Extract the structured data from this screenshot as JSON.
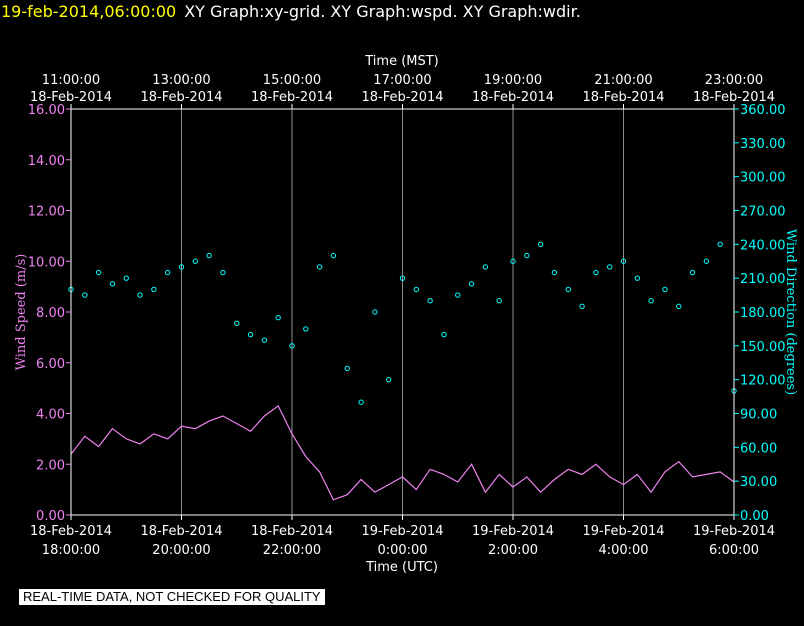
{
  "header": {
    "datetime": "19-feb-2014,06:00:00",
    "graphs": "XY Graph:xy-grid.  XY Graph:wspd.  XY Graph:wdir."
  },
  "disclaimer": "REAL-TIME DATA, NOT CHECKED FOR QUALITY",
  "colors": {
    "background": "#000000",
    "speed_series": "#ee82ee",
    "direction_series": "#00ffff",
    "axis_white": "#ffffff",
    "header_date": "#ffff00"
  },
  "chart_data": {
    "type": "line",
    "title": "",
    "top_axis": {
      "label": "Time (MST)",
      "ticks": [
        {
          "time": "11:00:00",
          "date": "18-Feb-2014"
        },
        {
          "time": "13:00:00",
          "date": "18-Feb-2014"
        },
        {
          "time": "15:00:00",
          "date": "18-Feb-2014"
        },
        {
          "time": "17:00:00",
          "date": "18-Feb-2014"
        },
        {
          "time": "19:00:00",
          "date": "18-Feb-2014"
        },
        {
          "time": "21:00:00",
          "date": "18-Feb-2014"
        },
        {
          "time": "23:00:00",
          "date": "18-Feb-2014"
        }
      ]
    },
    "bottom_axis": {
      "label": "Time (UTC)",
      "ticks": [
        {
          "date": "18-Feb-2014",
          "time": "18:00:00"
        },
        {
          "date": "18-Feb-2014",
          "time": "20:00:00"
        },
        {
          "date": "18-Feb-2014",
          "time": "22:00:00"
        },
        {
          "date": "19-Feb-2014",
          "time": "0:00:00"
        },
        {
          "date": "19-Feb-2014",
          "time": "2:00:00"
        },
        {
          "date": "19-Feb-2014",
          "time": "4:00:00"
        },
        {
          "date": "19-Feb-2014",
          "time": "6:00:00"
        }
      ],
      "hours_range": [
        18,
        30
      ]
    },
    "left_axis": {
      "label": "Wind Speed (m/s)",
      "ylim": [
        0,
        16
      ],
      "ticks": [
        "0.00",
        "2.00",
        "4.00",
        "6.00",
        "8.00",
        "10.00",
        "12.00",
        "14.00",
        "16.00"
      ]
    },
    "right_axis": {
      "label": "Wind Direction (degrees)",
      "ylim": [
        0,
        360
      ],
      "ticks": [
        "0.00",
        "30.00",
        "60.00",
        "90.00",
        "120.00",
        "150.00",
        "180.00",
        "210.00",
        "240.00",
        "270.00",
        "300.00",
        "330.00",
        "360.00"
      ]
    },
    "grid": true,
    "series": [
      {
        "key": "wspd",
        "style": "line",
        "x_hours": [
          18.0,
          18.25,
          18.5,
          18.75,
          19.0,
          19.25,
          19.5,
          19.75,
          20.0,
          20.25,
          20.5,
          20.75,
          21.0,
          21.25,
          21.5,
          21.75,
          22.0,
          22.25,
          22.5,
          22.75,
          23.0,
          23.25,
          23.5,
          23.75,
          24.0,
          24.25,
          24.5,
          24.75,
          25.0,
          25.25,
          25.5,
          25.75,
          26.0,
          26.25,
          26.5,
          26.75,
          27.0,
          27.25,
          27.5,
          27.75,
          28.0,
          28.25,
          28.5,
          28.75,
          29.0,
          29.25,
          29.5,
          29.75,
          30.0
        ],
        "values": [
          2.4,
          3.1,
          2.7,
          3.4,
          3.0,
          2.8,
          3.2,
          3.0,
          3.5,
          3.4,
          3.7,
          3.9,
          3.6,
          3.3,
          3.9,
          4.3,
          3.2,
          2.3,
          1.7,
          0.6,
          0.8,
          1.4,
          0.9,
          1.2,
          1.5,
          1.0,
          1.8,
          1.6,
          1.3,
          2.0,
          0.9,
          1.6,
          1.1,
          1.5,
          0.9,
          1.4,
          1.8,
          1.6,
          2.0,
          1.5,
          1.2,
          1.6,
          0.9,
          1.7,
          2.1,
          1.5,
          1.6,
          1.7,
          1.3
        ]
      },
      {
        "key": "wdir",
        "style": "circles",
        "x_hours": [
          18.0,
          18.25,
          18.5,
          18.75,
          19.0,
          19.25,
          19.5,
          19.75,
          20.0,
          20.25,
          20.5,
          20.75,
          21.0,
          21.25,
          21.5,
          21.75,
          22.0,
          22.25,
          22.5,
          22.75,
          23.0,
          23.25,
          23.5,
          23.75,
          24.0,
          24.25,
          24.5,
          24.75,
          25.0,
          25.25,
          25.5,
          25.75,
          26.0,
          26.25,
          26.5,
          26.75,
          27.0,
          27.25,
          27.5,
          27.75,
          28.0,
          28.25,
          28.5,
          28.75,
          29.0,
          29.25,
          29.5,
          29.75,
          30.0
        ],
        "values": [
          200,
          195,
          215,
          205,
          210,
          195,
          200,
          215,
          220,
          225,
          230,
          215,
          170,
          160,
          155,
          175,
          150,
          165,
          220,
          230,
          130,
          100,
          180,
          120,
          210,
          200,
          190,
          160,
          195,
          205,
          220,
          190,
          225,
          230,
          240,
          215,
          200,
          185,
          215,
          220,
          225,
          210,
          190,
          200,
          185,
          215,
          225,
          240,
          110
        ]
      }
    ]
  }
}
